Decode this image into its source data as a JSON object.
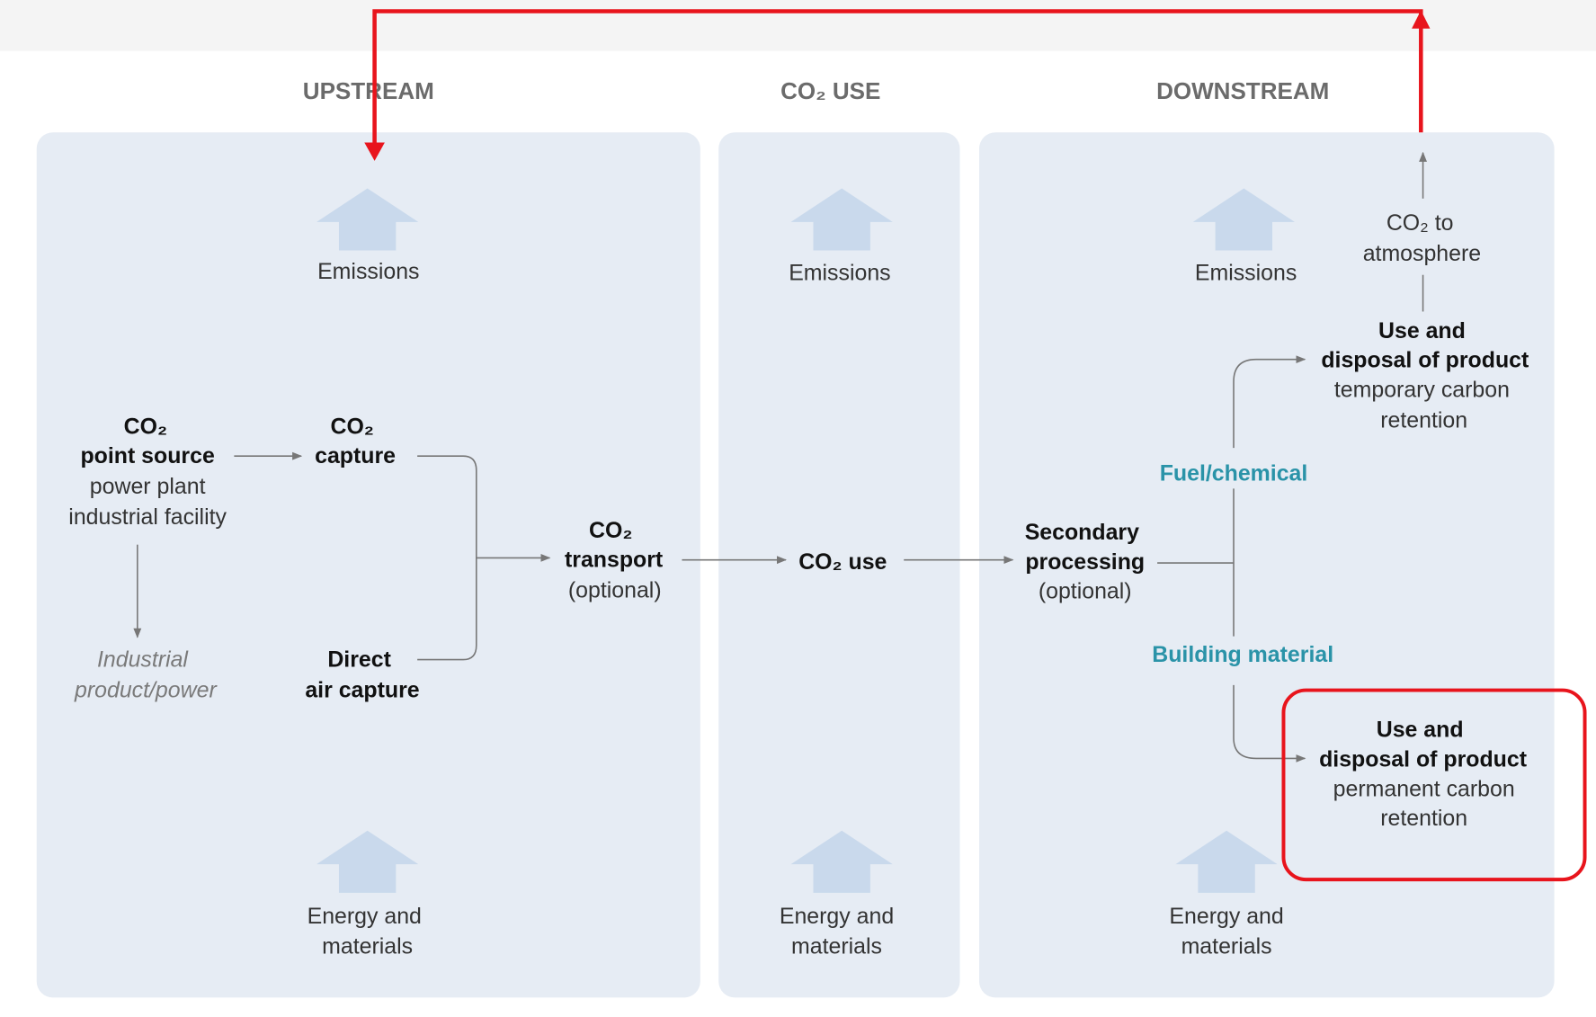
{
  "columns": [
    {
      "heading": "UPSTREAM"
    },
    {
      "heading": "CO₂ USE"
    },
    {
      "heading": "DOWNSTREAM"
    }
  ],
  "emissions_label": "Emissions",
  "energy_label": [
    "Energy and",
    "materials"
  ],
  "nodes": [
    {
      "title": [
        "CO₂",
        "point source"
      ],
      "note": [
        "power plant",
        "industrial facility"
      ]
    },
    {
      "title": [
        "CO₂",
        "capture"
      ]
    },
    {
      "title": [
        "Direct",
        "air capture"
      ]
    },
    {
      "note": [
        "Industrial",
        "product/power"
      ]
    },
    {
      "title": [
        "CO₂",
        "transport"
      ],
      "note": [
        "(optional)"
      ]
    },
    {
      "title": [
        "CO₂ use"
      ]
    },
    {
      "title": [
        "Secondary",
        "processing"
      ],
      "note": [
        "(optional)"
      ]
    },
    {
      "title": [
        "Use and",
        "disposal of product"
      ],
      "note": [
        "temporary carbon",
        "retention"
      ]
    },
    {
      "title": [
        "Use and",
        "disposal of product"
      ],
      "note": [
        "permanent carbon",
        "retention"
      ]
    },
    {
      "note": [
        "CO₂ to",
        "atmosphere"
      ]
    }
  ],
  "branches": [
    "Fuel/chemical",
    "Building material"
  ]
}
